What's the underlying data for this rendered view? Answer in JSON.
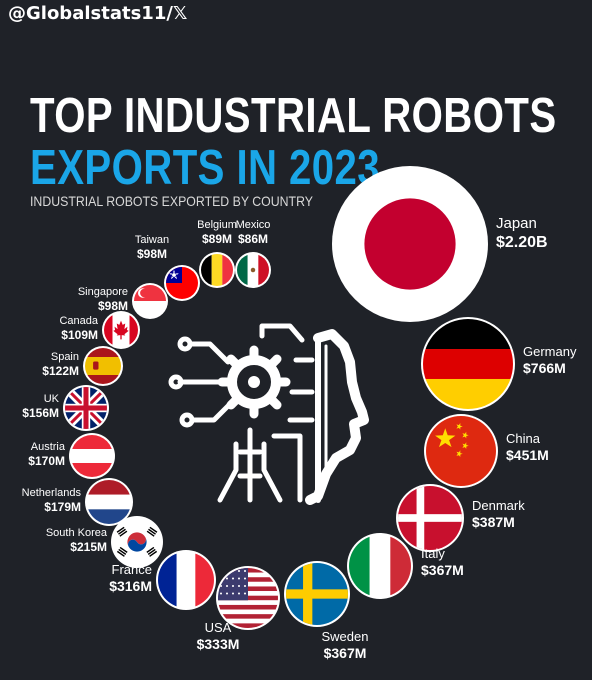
{
  "header": {
    "handle": "@Globalstats11/𝕏",
    "title_line1": "TOP INDUSTRIAL ROBOTS",
    "title_line2": "EXPORTS IN 2023",
    "subtitle": "INDUSTRIAL ROBOTS EXPORTED BY COUNTRY"
  },
  "colors": {
    "background": "#1f2228",
    "accent": "#1aa6e8",
    "text": "#ffffff"
  },
  "chart_data": {
    "type": "bubble",
    "title": "TOP INDUSTRIAL ROBOTS EXPORTS IN 2023",
    "subtitle": "INDUSTRIAL ROBOTS EXPORTED BY COUNTRY",
    "unit": "USD",
    "series": [
      {
        "country": "Japan",
        "label": "$2.20B",
        "value_millions": 2200,
        "flag": "japan-flag"
      },
      {
        "country": "Germany",
        "label": "$766M",
        "value_millions": 766,
        "flag": "germany-flag"
      },
      {
        "country": "China",
        "label": "$451M",
        "value_millions": 451,
        "flag": "china-flag"
      },
      {
        "country": "Denmark",
        "label": "$387M",
        "value_millions": 387,
        "flag": "denmark-flag"
      },
      {
        "country": "Italy",
        "label": "$367M",
        "value_millions": 367,
        "flag": "italy-flag"
      },
      {
        "country": "Sweden",
        "label": "$367M",
        "value_millions": 367,
        "flag": "sweden-flag"
      },
      {
        "country": "USA",
        "label": "$333M",
        "value_millions": 333,
        "flag": "usa-flag"
      },
      {
        "country": "France",
        "label": "$316M",
        "value_millions": 316,
        "flag": "france-flag"
      },
      {
        "country": "South Korea",
        "label": "$215M",
        "value_millions": 215,
        "flag": "south-korea-flag"
      },
      {
        "country": "Netherlands",
        "label": "$179M",
        "value_millions": 179,
        "flag": "netherlands-flag"
      },
      {
        "country": "Austria",
        "label": "$170M",
        "value_millions": 170,
        "flag": "austria-flag"
      },
      {
        "country": "UK",
        "label": "$156M",
        "value_millions": 156,
        "flag": "uk-flag"
      },
      {
        "country": "Spain",
        "label": "$122M",
        "value_millions": 122,
        "flag": "spain-flag"
      },
      {
        "country": "Canada",
        "label": "$109M",
        "value_millions": 109,
        "flag": "canada-flag"
      },
      {
        "country": "Singapore",
        "label": "$98M",
        "value_millions": 98,
        "flag": "singapore-flag"
      },
      {
        "country": "Taiwan",
        "label": "$98M",
        "value_millions": 98,
        "flag": "taiwan-flag"
      },
      {
        "country": "Belgium",
        "label": "$89M",
        "value_millions": 89,
        "flag": "belgium-flag"
      },
      {
        "country": "Mexico",
        "label": "$86M",
        "value_millions": 86,
        "flag": "mexico-flag"
      }
    ]
  }
}
